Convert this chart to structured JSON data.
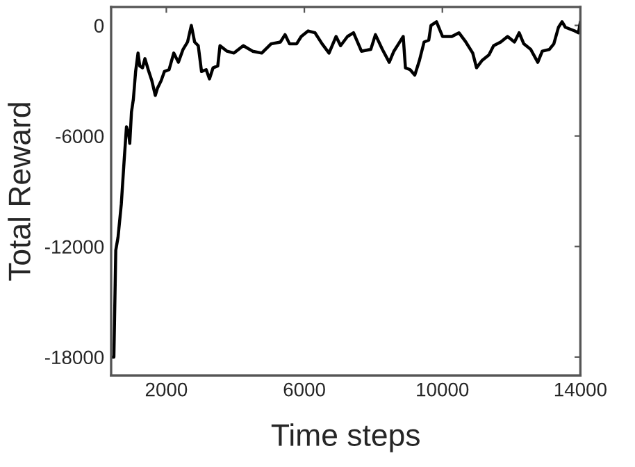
{
  "chart_data": {
    "type": "line",
    "xlabel": "Time steps",
    "ylabel": "Total Reward",
    "xlim": [
      400,
      14000
    ],
    "ylim": [
      -19000,
      1000
    ],
    "xticks": [
      2000,
      6000,
      10000,
      14000
    ],
    "yticks": [
      -18000,
      -12000,
      -6000,
      0
    ],
    "grid": false,
    "marker": "none",
    "line_style": "solid",
    "series": [
      {
        "color": "#000000",
        "x": [
          440,
          480,
          535,
          600,
          695,
          775,
          845,
          910,
          940,
          990,
          1045,
          1110,
          1180,
          1230,
          1310,
          1380,
          1475,
          1580,
          1680,
          1745,
          1850,
          1945,
          2080,
          2215,
          2350,
          2485,
          2615,
          2725,
          2820,
          2925,
          3020,
          3155,
          3250,
          3355,
          3490,
          3555,
          3760,
          3960,
          4230,
          4500,
          4765,
          5035,
          5305,
          5440,
          5570,
          5775,
          5910,
          6110,
          6310,
          6515,
          6715,
          6920,
          7050,
          7250,
          7425,
          7655,
          7925,
          8060,
          8260,
          8460,
          8595,
          8730,
          8865,
          8930,
          9065,
          9200,
          9335,
          9470,
          9605,
          9670,
          9830,
          10005,
          10275,
          10480,
          10680,
          10880,
          10990,
          11150,
          11350,
          11485,
          11690,
          11890,
          12090,
          12225,
          12360,
          12560,
          12765,
          12895,
          13100,
          13230,
          13365,
          13470,
          13565,
          13835,
          13945,
          14000
        ],
        "values": [
          -18000,
          -18000,
          -12200,
          -11500,
          -9700,
          -7400,
          -5500,
          -5900,
          -6400,
          -4700,
          -4000,
          -2500,
          -1500,
          -2200,
          -2300,
          -1800,
          -2400,
          -3000,
          -3800,
          -3400,
          -3000,
          -2500,
          -2400,
          -1500,
          -2000,
          -1300,
          -900,
          0,
          -900,
          -1100,
          -2500,
          -2400,
          -2900,
          -2300,
          -2200,
          -1100,
          -1400,
          -1500,
          -1100,
          -1400,
          -1500,
          -1000,
          -900,
          -500,
          -1000,
          -1000,
          -600,
          -300,
          -400,
          -1000,
          -1500,
          -600,
          -1100,
          -600,
          -400,
          -1400,
          -1300,
          -500,
          -1300,
          -2000,
          -1400,
          -1000,
          -600,
          -2300,
          -2400,
          -2700,
          -1900,
          -900,
          -800,
          0,
          200,
          -600,
          -600,
          -400,
          -900,
          -1500,
          -2300,
          -1900,
          -1600,
          -1100,
          -900,
          -600,
          -900,
          -400,
          -1000,
          -1300,
          -2000,
          -1400,
          -1300,
          -1000,
          -100,
          200,
          -100,
          -300,
          -400,
          200
        ]
      }
    ]
  }
}
